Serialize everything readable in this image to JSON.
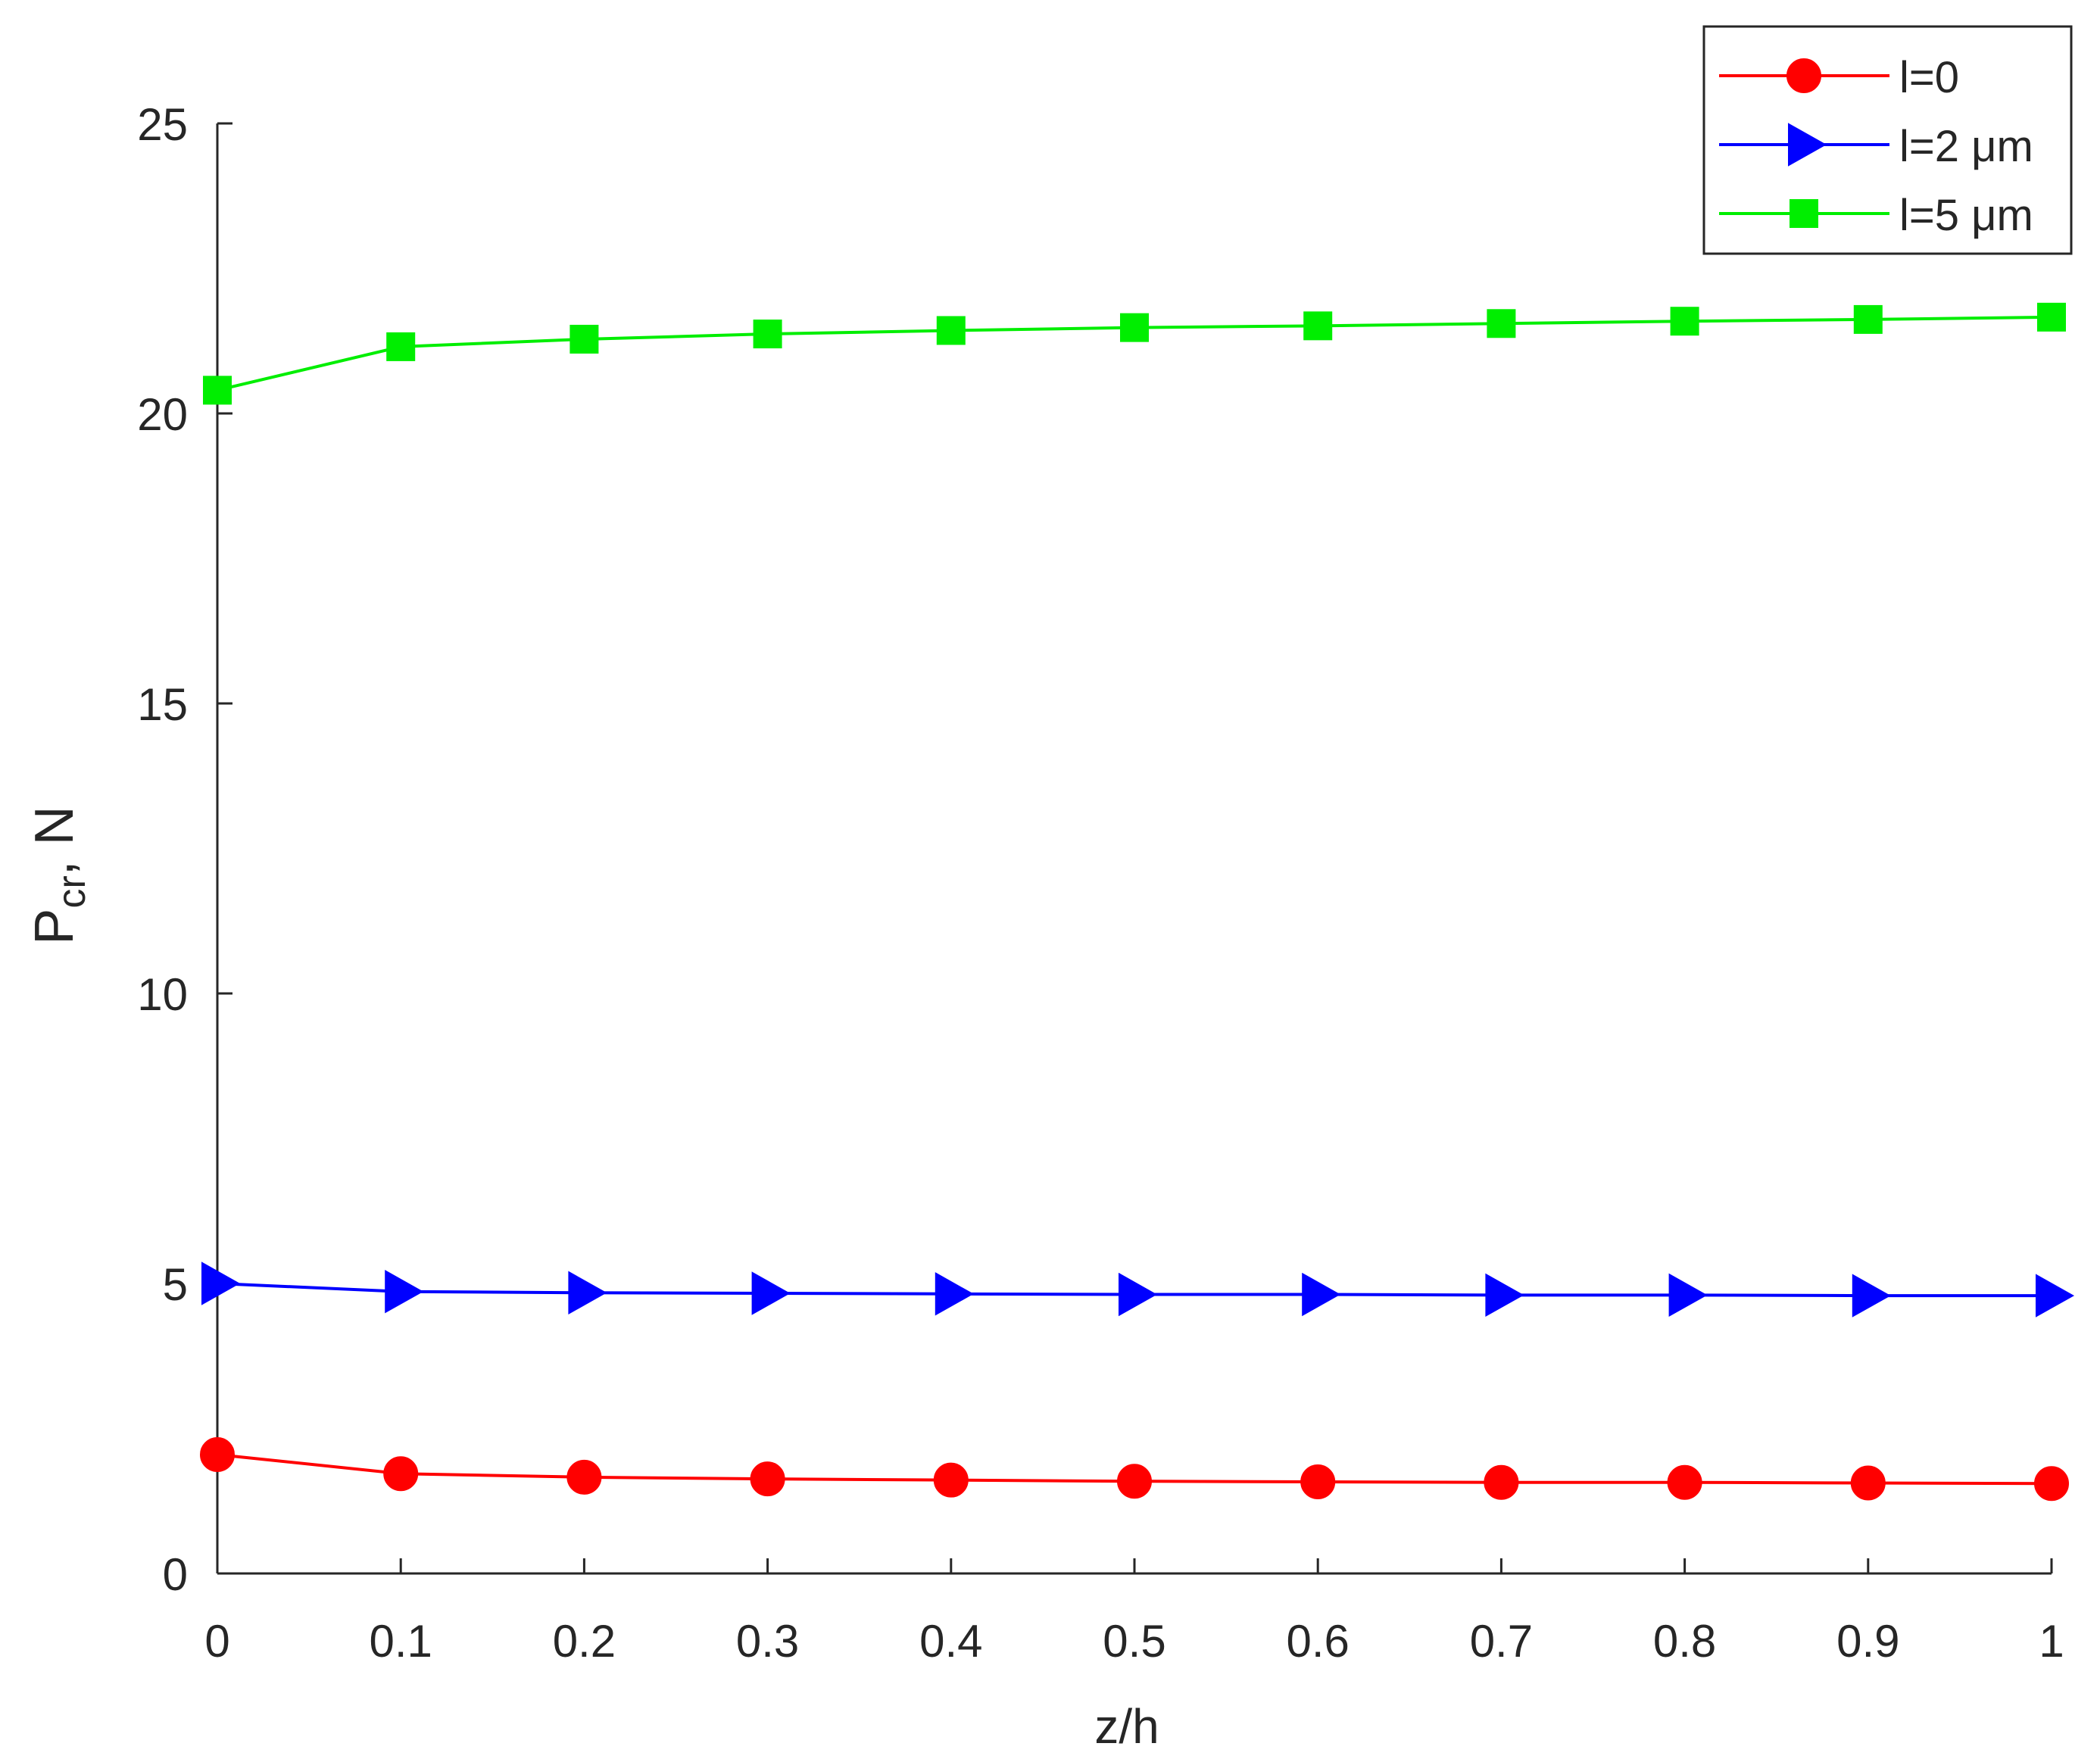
{
  "chart_data": {
    "type": "line",
    "title": "",
    "xlabel": "z/h",
    "ylabel": {
      "main": "P",
      "subscript": "cr",
      "suffix": ", N"
    },
    "xlim": [
      0,
      1
    ],
    "ylim": [
      0,
      25
    ],
    "x_ticks": [
      0,
      0.1,
      0.2,
      0.3,
      0.4,
      0.5,
      0.6,
      0.7,
      0.8,
      0.9,
      1
    ],
    "x_tick_labels": [
      "0",
      "0.1",
      "0.2",
      "0.3",
      "0.4",
      "0.5",
      "0.6",
      "0.7",
      "0.8",
      "0.9",
      "1"
    ],
    "y_ticks": [
      0,
      5,
      10,
      15,
      20,
      25
    ],
    "y_tick_labels": [
      "0",
      "5",
      "10",
      "15",
      "20",
      "25"
    ],
    "grid": false,
    "legend_placement": "top-right",
    "x": [
      0,
      0.1,
      0.2,
      0.3,
      0.4,
      0.5,
      0.6,
      0.7,
      0.8,
      0.9,
      1
    ],
    "series": [
      {
        "name": "l=0",
        "color": "#ff0000",
        "marker": "circle",
        "values": [
          2.05,
          1.72,
          1.66,
          1.63,
          1.61,
          1.59,
          1.58,
          1.57,
          1.57,
          1.56,
          1.55
        ]
      },
      {
        "name": "l=2 μm",
        "color": "#0000ff",
        "marker": "triangle-right",
        "values": [
          5.0,
          4.86,
          4.84,
          4.83,
          4.82,
          4.81,
          4.81,
          4.8,
          4.8,
          4.79,
          4.79
        ]
      },
      {
        "name": "l=5 μm",
        "color": "#00ee00",
        "marker": "square",
        "values": [
          20.4,
          21.15,
          21.28,
          21.37,
          21.43,
          21.48,
          21.51,
          21.55,
          21.59,
          21.62,
          21.66
        ]
      }
    ]
  }
}
